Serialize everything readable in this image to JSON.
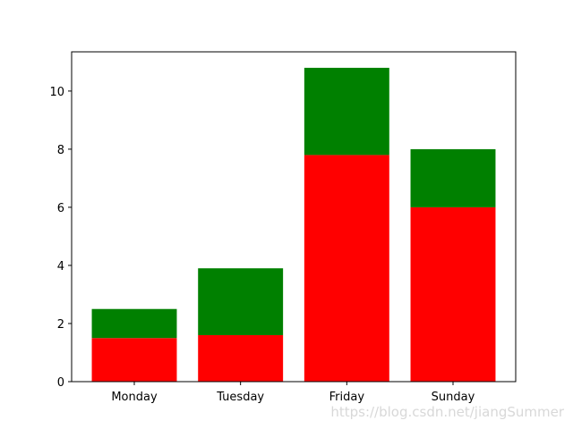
{
  "chart_data": {
    "type": "stacked-bar",
    "categories": [
      "Monday",
      "Tuesday",
      "Friday",
      "Sunday"
    ],
    "series": [
      {
        "color": "#ff0000",
        "values": [
          1.5,
          1.6,
          7.8,
          6
        ]
      },
      {
        "color": "#008000",
        "values": [
          1.0,
          2.3,
          3.0,
          2.0
        ]
      }
    ],
    "ylim": [
      0,
      11.35
    ],
    "yticks": [
      0,
      2,
      4,
      6,
      8,
      10
    ],
    "grid": false
  },
  "watermark": "https://blog.csdn.net/jiangSummer"
}
